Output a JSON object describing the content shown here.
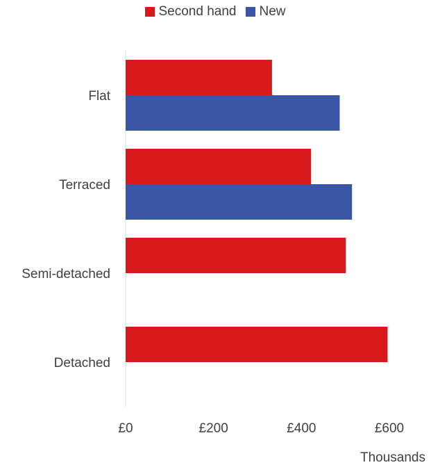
{
  "chart_data": {
    "type": "bar",
    "orientation": "horizontal",
    "categories": [
      "Flat",
      "Terraced",
      "Semi-detached",
      "Detached"
    ],
    "series": [
      {
        "name": "Second hand",
        "color": "#d7191c",
        "values": [
          333,
          422,
          501,
          596
        ]
      },
      {
        "name": "New",
        "color": "#3a55a4",
        "values": [
          487,
          515,
          null,
          null
        ]
      }
    ],
    "xlim": [
      0,
      600
    ],
    "xticks": [
      0,
      200,
      400,
      600
    ],
    "xtick_labels": [
      "£0",
      "£200",
      "£400",
      "£600"
    ],
    "xlabel": "Thousands",
    "legend_position": "top",
    "grid": false
  }
}
